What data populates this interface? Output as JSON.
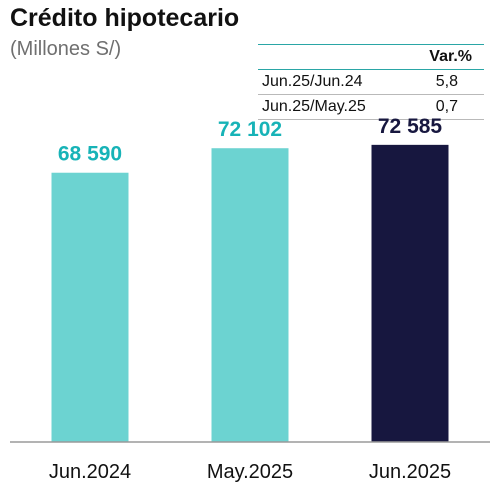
{
  "header": {
    "title": "Crédito hipotecario",
    "subtitle": "(Millones S/)"
  },
  "variation_table": {
    "header": "Var.%",
    "rows": [
      {
        "label": "Jun.25/Jun.24",
        "value": "5,8"
      },
      {
        "label": "Jun.25/May.25",
        "value": "0,7"
      }
    ]
  },
  "chart_data": {
    "type": "bar",
    "title": "Crédito hipotecario",
    "subtitle": "(Millones S/)",
    "categories": [
      "Jun.2024",
      "May.2025",
      "Jun.2025"
    ],
    "values": [
      68590,
      72102,
      72585
    ],
    "value_labels": [
      "68 590",
      "72 102",
      "72 585"
    ],
    "bar_colors": [
      "#6cd3d1",
      "#6cd3d1",
      "#17173f"
    ],
    "label_colors": [
      "#17b3b7",
      "#17b3b7",
      "#17173f"
    ],
    "xlabel": "",
    "ylabel": "",
    "ylim": [
      30000,
      75000
    ],
    "grid": false,
    "legend": "none"
  }
}
